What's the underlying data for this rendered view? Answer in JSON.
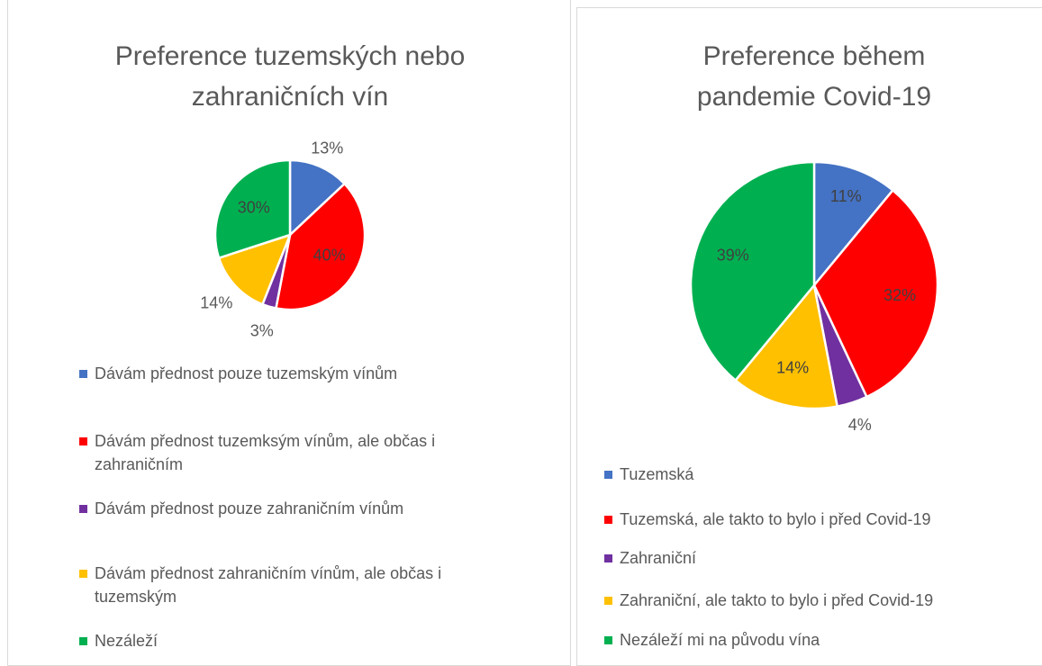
{
  "chart_data": [
    {
      "type": "pie",
      "title": "Preference tuzemských nebo zahraničních vín",
      "categories": [
        "Dávám přednost pouze tuzemským vínům",
        "Dávám přednost tuzemksým vínům, ale občas i zahraničním",
        "Dávám přednost pouze zahraničním vínům",
        "Dávám přednost zahraničním vínům, ale občas i tuzemským",
        "Nezáleží"
      ],
      "values": [
        13,
        40,
        3,
        14,
        30
      ],
      "value_labels": [
        "13%",
        "40%",
        "3%",
        "14%",
        "30%"
      ],
      "colors": [
        "#4472c4",
        "#ff0000",
        "#7030a0",
        "#ffc000",
        "#00b050"
      ],
      "legend": "bottom"
    },
    {
      "type": "pie",
      "title": "Preference během pandemie Covid-19",
      "categories": [
        "Tuzemská",
        "Tuzemská, ale takto to bylo i před Covid-19",
        "Zahraniční",
        "Zahraniční, ale takto to bylo i před Covid-19",
        "Nezáleží mi na původu vína"
      ],
      "values": [
        11,
        32,
        4,
        14,
        39
      ],
      "value_labels": [
        "11%",
        "32%",
        "4%",
        "14%",
        "39%"
      ],
      "colors": [
        "#4472c4",
        "#ff0000",
        "#7030a0",
        "#ffc000",
        "#00b050"
      ],
      "legend": "bottom"
    }
  ]
}
